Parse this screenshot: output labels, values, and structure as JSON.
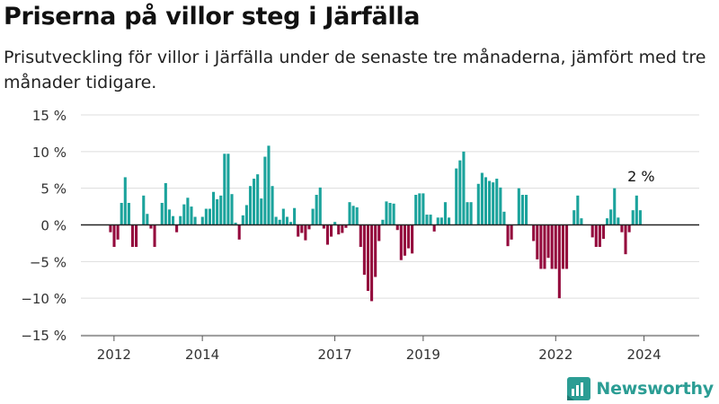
{
  "title": "Priserna på villor steg i Järfälla",
  "subtitle": "Prisutveckling för villor i Järfälla under de senaste tre månaderna, jämfört med tre månader tidigare.",
  "brand": "Newsworthy",
  "colors": {
    "positive": "#1ba39c",
    "negative": "#940a3d",
    "grid": "#dddddd",
    "axis": "#222222"
  },
  "chart_data": {
    "type": "bar",
    "title": "",
    "xlabel": "",
    "ylabel": "",
    "ylim": [
      -15,
      15
    ],
    "yticks": [
      15,
      10,
      5,
      0,
      -5,
      -10,
      -15
    ],
    "ytick_labels": [
      "15 %",
      "10 %",
      "5 %",
      "0 %",
      "−5 %",
      "−10 %",
      "−15 %"
    ],
    "grid": true,
    "legend": "none",
    "xrange": [
      2011.25,
      2025.25
    ],
    "xticks": [
      2012,
      2014,
      2017,
      2019,
      2022,
      2024
    ],
    "xtick_labels": [
      "2012",
      "2014",
      "2017",
      "2019",
      "2022",
      "2024"
    ],
    "start": 2011.92,
    "step": 0.0833,
    "values": [
      -1,
      -3,
      -2,
      3,
      6.5,
      3,
      -3,
      -3,
      0,
      4,
      1.5,
      -0.5,
      -3,
      0,
      3,
      5.7,
      2.1,
      1.2,
      -1,
      1.2,
      2.8,
      3.7,
      2.5,
      1.1,
      0,
      1.1,
      2.2,
      2.2,
      4.5,
      3.5,
      4,
      9.7,
      9.7,
      4.2,
      0.3,
      -2,
      1.3,
      2.7,
      5.3,
      6.3,
      6.9,
      3.6,
      9.3,
      10.8,
      5.3,
      1.1,
      0.7,
      2.2,
      1.1,
      0.4,
      2.3,
      -1.6,
      -1.1,
      -2.1,
      -0.6,
      2.2,
      4.1,
      5.1,
      -0.5,
      -2.7,
      -1.6,
      0.4,
      -1.3,
      -1.1,
      -0.4,
      3.1,
      2.6,
      2.4,
      -3,
      -6.8,
      -9,
      -10.4,
      -7.1,
      -2.2,
      0.7,
      3.2,
      3,
      2.9,
      -0.7,
      -4.8,
      -4.2,
      -3.2,
      -3.9,
      4.1,
      4.3,
      4.3,
      1.4,
      1.4,
      -0.9,
      1,
      1,
      3.1,
      1,
      0,
      7.7,
      8.8,
      10,
      3.1,
      3.1,
      0,
      5.6,
      7.1,
      6.5,
      6,
      5.8,
      6.3,
      5.1,
      1.8,
      -2.9,
      -2,
      0,
      5,
      4.1,
      4.1,
      0,
      -2.2,
      -4.7,
      -6,
      -6,
      -4.5,
      -6,
      -6,
      -10,
      -6,
      -6,
      0,
      2,
      4,
      0.9,
      0,
      0,
      -1.7,
      -3,
      -3,
      -1.9,
      0.9,
      2.1,
      5,
      1,
      -1,
      -4,
      -1,
      2,
      4,
      2
    ],
    "annotation": {
      "text": "2 %"
    }
  }
}
